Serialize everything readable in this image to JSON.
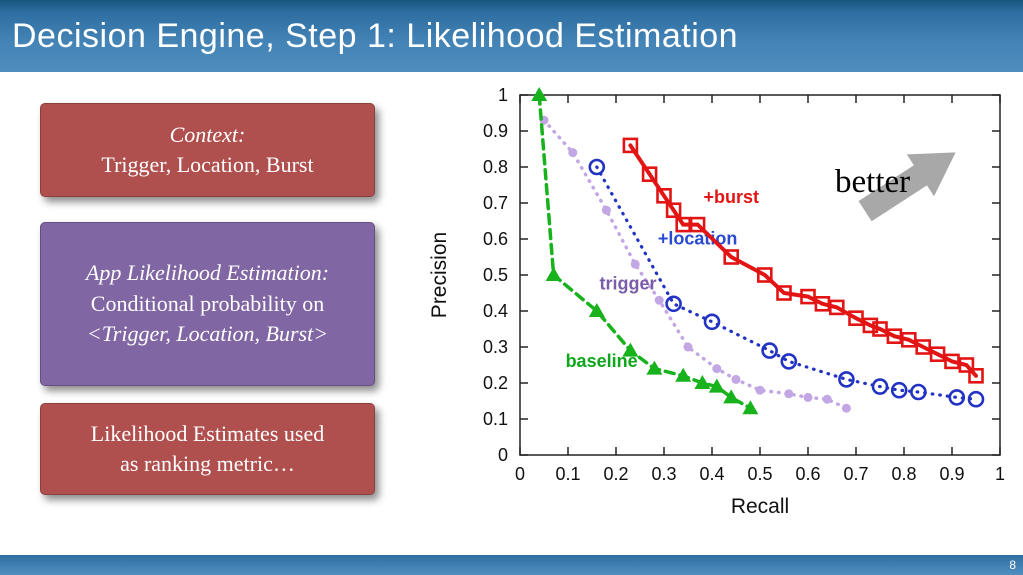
{
  "slide": {
    "title": "Decision Engine, Step 1: Likelihood Estimation",
    "page_number": "8",
    "theme": {
      "header_blue": "#4383b5",
      "box_red": "#b0504e",
      "box_purple": "#8066a2",
      "arrow_gray": "#a8a8a8"
    }
  },
  "boxes": {
    "context": {
      "heading": "Context:",
      "body": "Trigger, Location, Burst"
    },
    "app_likelihood": {
      "heading": "App Likelihood Estimation:",
      "line2": "Conditional probability on",
      "line3": "<Trigger, Location, Burst>"
    },
    "ranking": {
      "line1": "Likelihood Estimates used",
      "line2": "as ranking metric…"
    }
  },
  "chart_data": {
    "type": "line",
    "title": "",
    "xlabel": "Recall",
    "ylabel": "Precision",
    "xlim": [
      0,
      1
    ],
    "ylim": [
      0,
      1
    ],
    "grid": false,
    "legend_position": "inline-annotations",
    "xtick_labels": [
      "0",
      "0.1",
      "0.2",
      "0.3",
      "0.4",
      "0.5",
      "0.6",
      "0.7",
      "0.8",
      "0.9",
      "1"
    ],
    "ytick_labels": [
      "0",
      "0.1",
      "0.2",
      "0.3",
      "0.4",
      "0.5",
      "0.6",
      "0.7",
      "0.8",
      "0.9",
      "1"
    ],
    "better_label": "better",
    "series": [
      {
        "name": "trigger",
        "label": "trigger",
        "color": "#c3a6e4",
        "label_color": "#7a5ca8",
        "line": "dotted",
        "width": 3.5,
        "marker": "dot",
        "label_pos": [
          0.225,
          0.46
        ],
        "points": [
          [
            0.05,
            0.93
          ],
          [
            0.11,
            0.84
          ],
          [
            0.18,
            0.68
          ],
          [
            0.24,
            0.53
          ],
          [
            0.29,
            0.43
          ],
          [
            0.35,
            0.3
          ],
          [
            0.41,
            0.24
          ],
          [
            0.45,
            0.21
          ],
          [
            0.5,
            0.18
          ],
          [
            0.56,
            0.17
          ],
          [
            0.6,
            0.16
          ],
          [
            0.64,
            0.155
          ],
          [
            0.68,
            0.13
          ]
        ]
      },
      {
        "name": "baseline",
        "label": "baseline",
        "color": "#17b21c",
        "label_color": "#0ea71c",
        "line": "dashed",
        "width": 3.5,
        "marker": "triangle",
        "label_pos": [
          0.17,
          0.245
        ],
        "points": [
          [
            0.04,
            1.0
          ],
          [
            0.07,
            0.5
          ],
          [
            0.16,
            0.4
          ],
          [
            0.23,
            0.29
          ],
          [
            0.28,
            0.24
          ],
          [
            0.34,
            0.22
          ],
          [
            0.38,
            0.2
          ],
          [
            0.41,
            0.19
          ],
          [
            0.44,
            0.16
          ],
          [
            0.48,
            0.13
          ]
        ]
      },
      {
        "name": "location",
        "label": "+location",
        "color": "#2233c4",
        "label_color": "#2a4ad0",
        "line": "dotted",
        "width": 3.2,
        "marker": "circle",
        "label_pos": [
          0.37,
          0.585
        ],
        "points": [
          [
            0.16,
            0.8
          ],
          [
            0.32,
            0.42
          ],
          [
            0.4,
            0.37
          ],
          [
            0.52,
            0.29
          ],
          [
            0.56,
            0.26
          ],
          [
            0.68,
            0.21
          ],
          [
            0.75,
            0.19
          ],
          [
            0.79,
            0.18
          ],
          [
            0.83,
            0.175
          ],
          [
            0.91,
            0.16
          ],
          [
            0.95,
            0.155
          ]
        ]
      },
      {
        "name": "burst",
        "label": "+burst",
        "color": "#e21414",
        "label_color": "#e21414",
        "line": "solid",
        "width": 4,
        "marker": "square",
        "label_pos": [
          0.44,
          0.7
        ],
        "points": [
          [
            0.23,
            0.86
          ],
          [
            0.27,
            0.78
          ],
          [
            0.3,
            0.72
          ],
          [
            0.32,
            0.68
          ],
          [
            0.34,
            0.64
          ],
          [
            0.37,
            0.64
          ],
          [
            0.44,
            0.55
          ],
          [
            0.51,
            0.5
          ],
          [
            0.55,
            0.45
          ],
          [
            0.6,
            0.44
          ],
          [
            0.63,
            0.42
          ],
          [
            0.66,
            0.41
          ],
          [
            0.7,
            0.38
          ],
          [
            0.73,
            0.36
          ],
          [
            0.75,
            0.35
          ],
          [
            0.78,
            0.33
          ],
          [
            0.81,
            0.32
          ],
          [
            0.84,
            0.3
          ],
          [
            0.87,
            0.28
          ],
          [
            0.9,
            0.26
          ],
          [
            0.93,
            0.25
          ],
          [
            0.95,
            0.22
          ]
        ]
      }
    ]
  }
}
